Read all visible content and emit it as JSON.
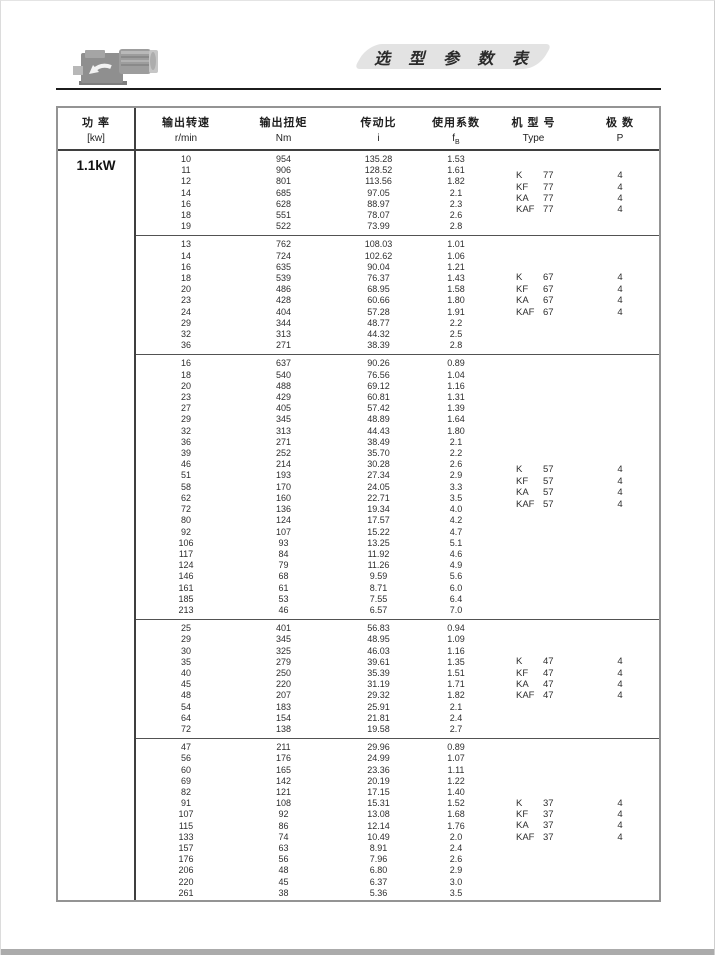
{
  "page": {
    "banner_title": "选 型 参 数 表"
  },
  "colors": {
    "banner_bg": "#e3e3e3",
    "rule_dark": "#1c1c1c",
    "table_border": "#949494"
  },
  "table": {
    "power_value": "1.1kW",
    "headers": {
      "power": {
        "zh": "功 率",
        "unit": "[kw]"
      },
      "speed": {
        "zh": "输出转速",
        "unit": "r/min"
      },
      "torque": {
        "zh": "输出扭矩",
        "unit": "Nm"
      },
      "ratio": {
        "zh": "传动比",
        "unit": "i"
      },
      "factor": {
        "zh": "使用系数",
        "unit_main": "f",
        "unit_sub": "B"
      },
      "type": {
        "zh": "机 型 号",
        "unit": "Type"
      },
      "poles": {
        "zh": "极 数",
        "unit": "P"
      }
    },
    "groups": [
      {
        "rows": [
          [
            "10",
            "954",
            "135.28",
            "1.53"
          ],
          [
            "11",
            "906",
            "128.52",
            "1.61"
          ],
          [
            "12",
            "801",
            "113.56",
            "1.82"
          ],
          [
            "14",
            "685",
            "97.05",
            "2.1"
          ],
          [
            "16",
            "628",
            "88.97",
            "2.3"
          ],
          [
            "18",
            "551",
            "78.07",
            "2.6"
          ],
          [
            "19",
            "522",
            "73.99",
            "2.8"
          ]
        ],
        "types": [
          {
            "model": "K",
            "size": "77",
            "p": "4"
          },
          {
            "model": "KF",
            "size": "77",
            "p": "4"
          },
          {
            "model": "KA",
            "size": "77",
            "p": "4"
          },
          {
            "model": "KAF",
            "size": "77",
            "p": "4"
          }
        ]
      },
      {
        "rows": [
          [
            "13",
            "762",
            "108.03",
            "1.01"
          ],
          [
            "14",
            "724",
            "102.62",
            "1.06"
          ],
          [
            "16",
            "635",
            "90.04",
            "1.21"
          ],
          [
            "18",
            "539",
            "76.37",
            "1.43"
          ],
          [
            "20",
            "486",
            "68.95",
            "1.58"
          ],
          [
            "23",
            "428",
            "60.66",
            "1.80"
          ],
          [
            "24",
            "404",
            "57.28",
            "1.91"
          ],
          [
            "29",
            "344",
            "48.77",
            "2.2"
          ],
          [
            "32",
            "313",
            "44.32",
            "2.5"
          ],
          [
            "36",
            "271",
            "38.39",
            "2.8"
          ]
        ],
        "types": [
          {
            "model": "K",
            "size": "67",
            "p": "4"
          },
          {
            "model": "KF",
            "size": "67",
            "p": "4"
          },
          {
            "model": "KA",
            "size": "67",
            "p": "4"
          },
          {
            "model": "KAF",
            "size": "67",
            "p": "4"
          }
        ]
      },
      {
        "rows": [
          [
            "16",
            "637",
            "90.26",
            "0.89"
          ],
          [
            "18",
            "540",
            "76.56",
            "1.04"
          ],
          [
            "20",
            "488",
            "69.12",
            "1.16"
          ],
          [
            "23",
            "429",
            "60.81",
            "1.31"
          ],
          [
            "27",
            "405",
            "57.42",
            "1.39"
          ],
          [
            "29",
            "345",
            "48.89",
            "1.64"
          ],
          [
            "32",
            "313",
            "44.43",
            "1.80"
          ],
          [
            "36",
            "271",
            "38.49",
            "2.1"
          ],
          [
            "39",
            "252",
            "35.70",
            "2.2"
          ],
          [
            "46",
            "214",
            "30.28",
            "2.6"
          ],
          [
            "51",
            "193",
            "27.34",
            "2.9"
          ],
          [
            "58",
            "170",
            "24.05",
            "3.3"
          ],
          [
            "62",
            "160",
            "22.71",
            "3.5"
          ],
          [
            "72",
            "136",
            "19.34",
            "4.0"
          ],
          [
            "80",
            "124",
            "17.57",
            "4.2"
          ],
          [
            "92",
            "107",
            "15.22",
            "4.7"
          ],
          [
            "106",
            "93",
            "13.25",
            "5.1"
          ],
          [
            "117",
            "84",
            "11.92",
            "4.6"
          ],
          [
            "124",
            "79",
            "11.26",
            "4.9"
          ],
          [
            "146",
            "68",
            "9.59",
            "5.6"
          ],
          [
            "161",
            "61",
            "8.71",
            "6.0"
          ],
          [
            "185",
            "53",
            "7.55",
            "6.4"
          ],
          [
            "213",
            "46",
            "6.57",
            "7.0"
          ]
        ],
        "types": [
          {
            "model": "K",
            "size": "57",
            "p": "4"
          },
          {
            "model": "KF",
            "size": "57",
            "p": "4"
          },
          {
            "model": "KA",
            "size": "57",
            "p": "4"
          },
          {
            "model": "KAF",
            "size": "57",
            "p": "4"
          }
        ]
      },
      {
        "rows": [
          [
            "25",
            "401",
            "56.83",
            "0.94"
          ],
          [
            "29",
            "345",
            "48.95",
            "1.09"
          ],
          [
            "30",
            "325",
            "46.03",
            "1.16"
          ],
          [
            "35",
            "279",
            "39.61",
            "1.35"
          ],
          [
            "40",
            "250",
            "35.39",
            "1.51"
          ],
          [
            "45",
            "220",
            "31.19",
            "1.71"
          ],
          [
            "48",
            "207",
            "29.32",
            "1.82"
          ],
          [
            "54",
            "183",
            "25.91",
            "2.1"
          ],
          [
            "64",
            "154",
            "21.81",
            "2.4"
          ],
          [
            "72",
            "138",
            "19.58",
            "2.7"
          ]
        ],
        "types": [
          {
            "model": "K",
            "size": "47",
            "p": "4"
          },
          {
            "model": "KF",
            "size": "47",
            "p": "4"
          },
          {
            "model": "KA",
            "size": "47",
            "p": "4"
          },
          {
            "model": "KAF",
            "size": "47",
            "p": "4"
          }
        ]
      },
      {
        "rows": [
          [
            "47",
            "211",
            "29.96",
            "0.89"
          ],
          [
            "56",
            "176",
            "24.99",
            "1.07"
          ],
          [
            "60",
            "165",
            "23.36",
            "1.11"
          ],
          [
            "69",
            "142",
            "20.19",
            "1.22"
          ],
          [
            "82",
            "121",
            "17.15",
            "1.40"
          ],
          [
            "91",
            "108",
            "15.31",
            "1.52"
          ],
          [
            "107",
            "92",
            "13.08",
            "1.68"
          ],
          [
            "115",
            "86",
            "12.14",
            "1.76"
          ],
          [
            "133",
            "74",
            "10.49",
            "2.0"
          ],
          [
            "157",
            "63",
            "8.91",
            "2.4"
          ],
          [
            "176",
            "56",
            "7.96",
            "2.6"
          ],
          [
            "206",
            "48",
            "6.80",
            "2.9"
          ],
          [
            "220",
            "45",
            "6.37",
            "3.0"
          ],
          [
            "261",
            "38",
            "5.36",
            "3.5"
          ]
        ],
        "types": [
          {
            "model": "K",
            "size": "37",
            "p": "4"
          },
          {
            "model": "KF",
            "size": "37",
            "p": "4"
          },
          {
            "model": "KA",
            "size": "37",
            "p": "4"
          },
          {
            "model": "KAF",
            "size": "37",
            "p": "4"
          }
        ]
      }
    ]
  }
}
